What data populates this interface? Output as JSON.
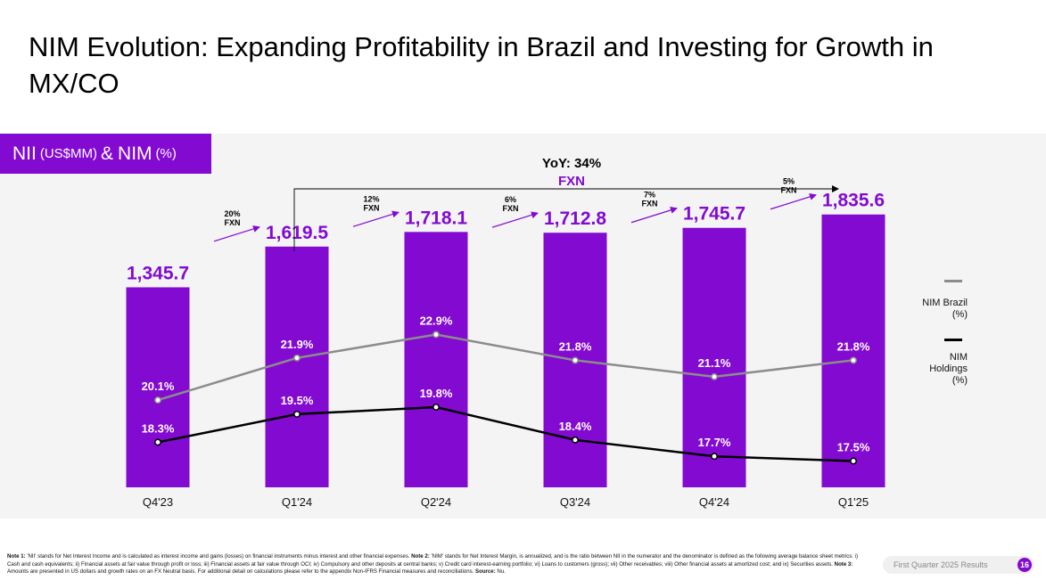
{
  "title": "NIM Evolution: Expanding Profitability in Brazil and Investing for Growth in MX/CO",
  "tag": {
    "part1": "NII",
    "unit1": "(US$MM)",
    "amp": "&",
    "part2": "NIM",
    "unit2": "(%)"
  },
  "colors": {
    "purple": "#820ad1",
    "gray": "#8c8c8c",
    "black": "#000000"
  },
  "chart_data": {
    "type": "bar",
    "title": "NII (US$MM) & NIM (%)",
    "categories": [
      "Q4'23",
      "Q1'24",
      "Q2'24",
      "Q3'24",
      "Q4'24",
      "Q1'25"
    ],
    "values": [
      1345.7,
      1619.5,
      1718.1,
      1712.8,
      1745.7,
      1835.6
    ],
    "value_labels": [
      "1,345.7",
      "1,619.5",
      "1,718.1",
      "1,712.8",
      "1,745.7",
      "1,835.6"
    ],
    "ylim": [
      0,
      1900
    ],
    "lines": [
      {
        "name": "NIM Brazil (%)",
        "values": [
          20.1,
          21.9,
          22.9,
          21.8,
          21.1,
          21.8
        ],
        "labels": [
          "20.1%",
          "21.9%",
          "22.9%",
          "21.8%",
          "21.1%",
          "21.8%"
        ],
        "color": "#8c8c8c"
      },
      {
        "name": "NIM Holdings (%)",
        "values": [
          18.3,
          19.5,
          19.8,
          18.4,
          17.7,
          17.5
        ],
        "labels": [
          "18.3%",
          "19.5%",
          "19.8%",
          "18.4%",
          "17.7%",
          "17.5%"
        ],
        "color": "#000000"
      }
    ],
    "growth_annotations": [
      {
        "pct": "20%",
        "note": "FXN"
      },
      {
        "pct": "12%",
        "note": "FXN"
      },
      {
        "pct": "6%",
        "note": "FXN"
      },
      {
        "pct": "7%",
        "note": "FXN"
      },
      {
        "pct": "5%",
        "note": "FXN"
      }
    ],
    "yoy": {
      "label": "YoY: 34%",
      "note": "FXN"
    }
  },
  "legend": {
    "brazil": [
      "NIM Brazil",
      "(%)"
    ],
    "holdings": [
      "NIM",
      "Holdings",
      "(%)"
    ]
  },
  "footnote": {
    "n1_label": "Note 1:",
    "n1": " 'NII' stands for Net Interest Income and is calculated as interest income and gains (losses) on financial instruments minus interest and other financial expenses. ",
    "n2_label": "Note 2:",
    "n2": " 'NIM' stands for Net Interest Margin, is annualized, and is the ratio between NII in the numerator and the denominator is defined as the following average balance sheet metrics: i) Cash and cash equivalents; ii) Financial assets at fair value through profit or loss; iii) Financial assets at fair value through OCI; iv) Compulsory and other deposits at central banks; v) Credit card interest-earning portfolio; vi) Loans to customers (gross); vii) Other receivables; viii) Other financial assets at amortized cost; and ix) Securities assets. ",
    "n3_label": "Note 3:",
    "n3": " Amounts are presented in US dollars and growth rates on an FX Neutral basis. For additional detail on calculations please refer to the appendix Non-IFRS Financial measures and reconciliations. ",
    "src_label": "Source:",
    "src": " Nu."
  },
  "pill": {
    "text": "First Quarter 2025 Results",
    "page": "16"
  }
}
